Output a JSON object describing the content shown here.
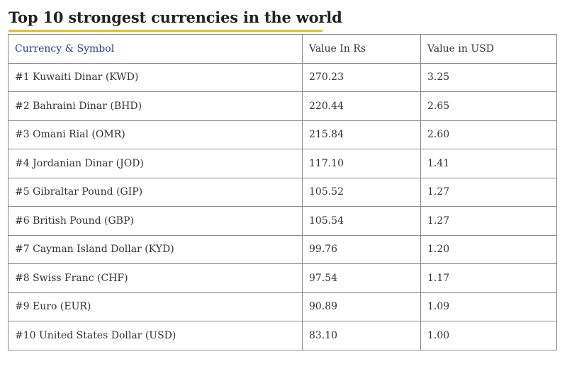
{
  "title": "Top 10 strongest currencies in the world",
  "colors": {
    "title_underline": "#e8c21a",
    "header_currency_text": "#1f3c88",
    "border": "#8a8a8a"
  },
  "table": {
    "headers": [
      "Currency & Symbol",
      "Value In Rs",
      "Value in USD"
    ],
    "rows": [
      {
        "currency": "#1 Kuwaiti Dinar (KWD)",
        "rs": "270.23",
        "usd": "3.25"
      },
      {
        "currency": "#2 Bahraini Dinar (BHD)",
        "rs": "220.44",
        "usd": "2.65"
      },
      {
        "currency": "#3 Omani Rial (OMR)",
        "rs": "215.84",
        "usd": "2.60"
      },
      {
        "currency": "#4 Jordanian Dinar (JOD)",
        "rs": "117.10",
        "usd": "1.41"
      },
      {
        "currency": "#5 Gibraltar Pound (GIP)",
        "rs": "105.52",
        "usd": "1.27"
      },
      {
        "currency": "#6 British Pound (GBP)",
        "rs": "105.54",
        "usd": "1.27"
      },
      {
        "currency": "#7 Cayman Island Dollar (KYD)",
        "rs": "99.76",
        "usd": "1.20"
      },
      {
        "currency": "#8 Swiss Franc (CHF)",
        "rs": "97.54",
        "usd": "1.17"
      },
      {
        "currency": "#9 Euro (EUR)",
        "rs": "90.89",
        "usd": "1.09"
      },
      {
        "currency": "#10 United States Dollar (USD)",
        "rs": "83.10",
        "usd": "1.00"
      }
    ]
  }
}
